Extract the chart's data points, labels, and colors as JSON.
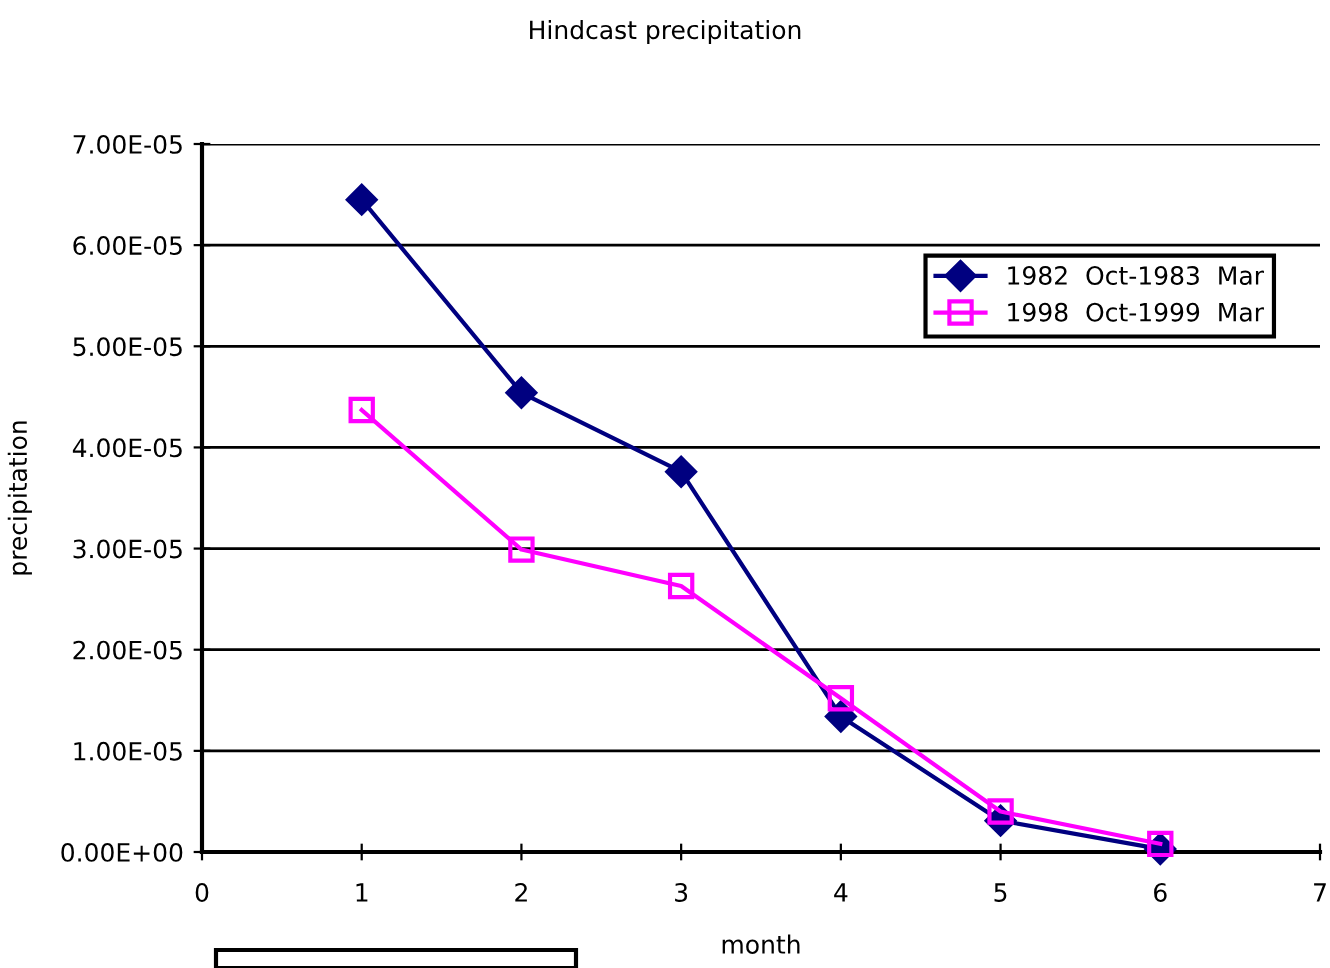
{
  "chart_data": {
    "type": "line",
    "title": "Hindcast precipitation",
    "xlabel": "month",
    "ylabel": "precipitation",
    "x": [
      1,
      2,
      3,
      4,
      5,
      6
    ],
    "series": [
      {
        "name": "1982  Oct-1983  Mar",
        "color": "#000080",
        "marker": "diamond",
        "values": [
          6.45e-05,
          4.54e-05,
          3.76e-05,
          1.34e-05,
          3.1e-06,
          3e-07
        ]
      },
      {
        "name": "1998  Oct-1999  Mar",
        "color": "#ff00ff",
        "marker": "square",
        "values": [
          4.37e-05,
          2.99e-05,
          2.63e-05,
          1.52e-05,
          4e-06,
          8e-07
        ]
      }
    ],
    "xlim": [
      0,
      7
    ],
    "xticks": [
      0,
      1,
      2,
      3,
      4,
      5,
      6,
      7
    ],
    "ylim": [
      0,
      7e-05
    ],
    "yticks": [
      {
        "value": 0,
        "label": "0.00E+00"
      },
      {
        "value": 1e-05,
        "label": "1.00E-05"
      },
      {
        "value": 2e-05,
        "label": "2.00E-05"
      },
      {
        "value": 3e-05,
        "label": "3.00E-05"
      },
      {
        "value": 4e-05,
        "label": "4.00E-05"
      },
      {
        "value": 5e-05,
        "label": "5.00E-05"
      },
      {
        "value": 6e-05,
        "label": "6.00E-05"
      },
      {
        "value": 7e-05,
        "label": "7.00E-05"
      }
    ],
    "grid": "y",
    "legend": "top right",
    "line_style": "solid"
  }
}
